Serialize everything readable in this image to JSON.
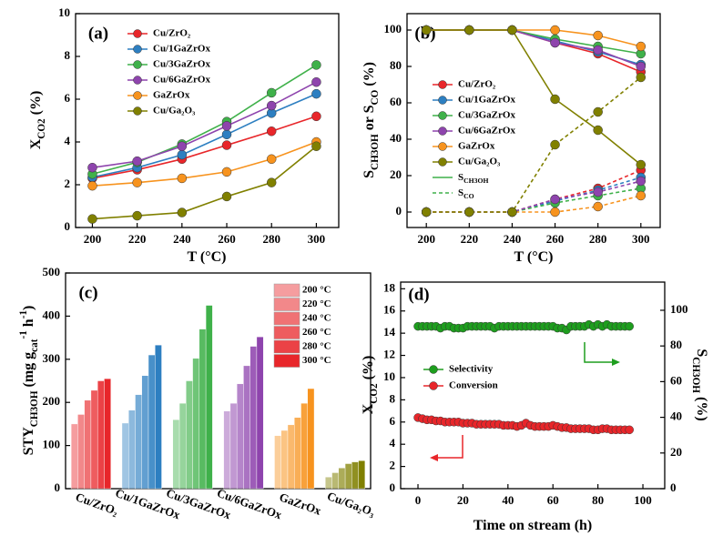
{
  "chart_data": [
    {
      "type": "line",
      "panel_label": "(a)",
      "xlabel": [
        {
          "text": "T (°C)"
        }
      ],
      "ylabel": [
        {
          "text": "X"
        },
        {
          "text": "CO2",
          "shift": "sub"
        },
        {
          "text": " (%)"
        }
      ],
      "x": [
        200,
        220,
        240,
        260,
        280,
        300
      ],
      "xlim": [
        192.5,
        310
      ],
      "xticks": [
        200,
        220,
        240,
        260,
        280,
        300
      ],
      "ylim": [
        0,
        10
      ],
      "yticks": [
        0,
        2,
        4,
        6,
        8,
        10
      ],
      "legend": "upper left",
      "series": [
        {
          "name": "Cu/ZrO₂",
          "color": "#e8262a",
          "values": [
            2.3,
            2.7,
            3.2,
            3.85,
            4.5,
            5.2
          ]
        },
        {
          "name": "Cu/1GaZrOx",
          "color": "#2d7fc1",
          "values": [
            2.35,
            2.8,
            3.4,
            4.35,
            5.35,
            6.25
          ]
        },
        {
          "name": "Cu/3GaZrOx",
          "color": "#3fb14a",
          "values": [
            2.5,
            3.05,
            3.9,
            4.95,
            6.3,
            7.6
          ]
        },
        {
          "name": "Cu/6GaZrOx",
          "color": "#8e44ad",
          "values": [
            2.8,
            3.1,
            3.8,
            4.75,
            5.7,
            6.8
          ]
        },
        {
          "name": "GaZrOx",
          "color": "#f7931e",
          "values": [
            1.95,
            2.1,
            2.3,
            2.6,
            3.2,
            4.0
          ]
        },
        {
          "name": "Cu/Ga₂O₃",
          "color": "#808000",
          "values": [
            0.4,
            0.55,
            0.7,
            1.45,
            2.1,
            3.8
          ]
        }
      ]
    },
    {
      "type": "line",
      "panel_label": "(b)",
      "xlabel": [
        {
          "text": "T (°C)"
        }
      ],
      "ylabel": [
        {
          "text": "S"
        },
        {
          "text": "CH3OH",
          "shift": "sub"
        },
        {
          "text": " or S"
        },
        {
          "text": "CO",
          "shift": "sub"
        },
        {
          "text": " (%)"
        }
      ],
      "x": [
        200,
        220,
        240,
        260,
        280,
        300
      ],
      "xlim": [
        191,
        309
      ],
      "xticks": [
        200,
        220,
        240,
        260,
        280,
        300
      ],
      "ylim": [
        -8.5,
        109
      ],
      "yticks": [
        0,
        20,
        40,
        60,
        80,
        100
      ],
      "legend": "center left",
      "series": [
        {
          "name": "Cu/ZrO₂",
          "color": "#e8262a",
          "values": [
            100,
            100,
            100,
            93,
            87,
            77
          ],
          "co_values": [
            0,
            0,
            0,
            7,
            13,
            23
          ]
        },
        {
          "name": "Cu/1GaZrOx",
          "color": "#2d7fc1",
          "values": [
            100,
            100,
            100,
            94,
            88,
            81
          ],
          "co_values": [
            0,
            0,
            0,
            6,
            12,
            19
          ]
        },
        {
          "name": "Cu/3GaZrOx",
          "color": "#3fb14a",
          "values": [
            100,
            100,
            100,
            95,
            91,
            87
          ],
          "co_values": [
            0,
            0,
            0,
            5,
            9,
            13
          ]
        },
        {
          "name": "Cu/6GaZrOx",
          "color": "#8e44ad",
          "values": [
            100,
            100,
            100,
            93,
            89,
            80
          ],
          "co_values": [
            0,
            0,
            0,
            7,
            11,
            17
          ]
        },
        {
          "name": "GaZrOx",
          "color": "#f7931e",
          "values": [
            100,
            100,
            100,
            100,
            97,
            91
          ],
          "co_values": [
            0,
            0,
            0,
            0,
            3,
            9
          ]
        },
        {
          "name": "Cu/Ga₂O₃",
          "color": "#808000",
          "values": [
            100,
            100,
            100,
            62,
            45,
            26
          ],
          "co_values": [
            0,
            0,
            0,
            37,
            55,
            74
          ]
        }
      ],
      "line_styles": [
        {
          "label": [
            {
              "text": "S"
            },
            {
              "text": "CH3OH",
              "shift": "sub"
            }
          ],
          "dash": false,
          "color": "#3fb14a"
        },
        {
          "label": [
            {
              "text": "S"
            },
            {
              "text": "CO",
              "shift": "sub"
            }
          ],
          "dash": true,
          "color": "#3fb14a"
        }
      ]
    },
    {
      "type": "bar",
      "panel_label": "(c)",
      "ylabel": [
        {
          "text": "STY"
        },
        {
          "text": "CH3OH",
          "shift": "sub"
        },
        {
          "text": " (mg g"
        },
        {
          "text": "cat",
          "shift": "sub"
        },
        {
          "text": "-1",
          "shift": "super"
        },
        {
          "text": " h"
        },
        {
          "text": "-1",
          "shift": "super"
        },
        {
          "text": ")"
        }
      ],
      "categories": [
        "Cu/ZrO₂",
        "Cu/1GaZrOx",
        "Cu/3GaZrOx",
        "Cu/6GaZrOx",
        "GaZrOx",
        "Cu/Ga₂O₃"
      ],
      "category_colors": [
        "#e8262a",
        "#2d7fc1",
        "#3fb14a",
        "#8e44ad",
        "#f7931e",
        "#808000"
      ],
      "ylim": [
        0,
        500
      ],
      "yticks": [
        0,
        100,
        200,
        300,
        400,
        500
      ],
      "legend": "upper right",
      "series": [
        {
          "name": "200 °C",
          "opacity": 0.45,
          "values": [
            150,
            152,
            160,
            180,
            123,
            27
          ]
        },
        {
          "name": "220 °C",
          "opacity": 0.55,
          "values": [
            172,
            182,
            198,
            198,
            135,
            37
          ]
        },
        {
          "name": "240 °C",
          "opacity": 0.65,
          "values": [
            205,
            218,
            250,
            243,
            148,
            48
          ]
        },
        {
          "name": "260 °C",
          "opacity": 0.75,
          "values": [
            228,
            262,
            302,
            285,
            165,
            58
          ]
        },
        {
          "name": "280 °C",
          "opacity": 0.87,
          "values": [
            250,
            310,
            370,
            330,
            198,
            62
          ]
        },
        {
          "name": "300 °C",
          "opacity": 1,
          "values": [
            255,
            333,
            425,
            352,
            232,
            65
          ]
        }
      ]
    },
    {
      "type": "dual_line",
      "panel_label": "(d)",
      "xlabel": [
        {
          "text": "Time on stream (h)"
        }
      ],
      "ylabel": [
        {
          "text": "X"
        },
        {
          "text": "CO2",
          "shift": "sub"
        },
        {
          "text": " (%)"
        }
      ],
      "y2label": [
        {
          "text": "S"
        },
        {
          "text": "CH3OH",
          "shift": "sub"
        },
        {
          "text": " (%)"
        }
      ],
      "x": [
        0,
        2,
        4,
        6,
        8,
        10,
        12,
        14,
        16,
        18,
        20,
        22,
        24,
        26,
        28,
        30,
        32,
        34,
        36,
        38,
        40,
        42,
        44,
        46,
        48,
        50,
        52,
        54,
        56,
        58,
        60,
        62,
        64,
        66,
        68,
        70,
        72,
        74,
        76,
        78,
        80,
        82,
        84,
        86,
        88,
        90,
        92,
        94
      ],
      "xlim": [
        -7.7,
        109.7
      ],
      "xticks": [
        0,
        20,
        40,
        60,
        80,
        100
      ],
      "ylim": [
        0,
        18.6
      ],
      "yticks": [
        0,
        2,
        4,
        6,
        8,
        10,
        12,
        14,
        16,
        18
      ],
      "y2lim": [
        0,
        115.8
      ],
      "y2ticks": [
        0,
        20,
        40,
        60,
        80,
        100
      ],
      "legend": "center left",
      "series": [
        {
          "name": "Selectivity",
          "color": "#1e9e1e",
          "axis": "y2",
          "values": [
            91,
            91,
            91,
            91,
            91,
            90,
            91,
            91,
            90,
            90,
            90,
            91,
            91,
            91,
            91,
            91,
            91,
            90,
            91,
            91,
            91,
            91,
            91,
            91,
            91,
            91,
            91,
            91,
            91,
            91,
            91,
            90,
            90,
            89,
            91,
            91,
            91,
            91,
            92,
            91,
            92,
            91,
            92,
            91,
            91,
            91,
            91,
            91
          ]
        },
        {
          "name": "Conversion",
          "color": "#e8262a",
          "values": [
            6.4,
            6.3,
            6.2,
            6.2,
            6.1,
            6.1,
            6.0,
            6.0,
            6.0,
            6.0,
            5.9,
            5.9,
            5.9,
            5.8,
            5.8,
            5.8,
            5.8,
            5.8,
            5.8,
            5.7,
            5.7,
            5.7,
            5.6,
            5.7,
            5.9,
            5.7,
            5.6,
            5.6,
            5.6,
            5.6,
            5.7,
            5.6,
            5.5,
            5.5,
            5.4,
            5.4,
            5.4,
            5.4,
            5.4,
            5.3,
            5.3,
            5.4,
            5.4,
            5.3,
            5.3,
            5.3,
            5.3,
            5.3
          ]
        }
      ]
    }
  ]
}
